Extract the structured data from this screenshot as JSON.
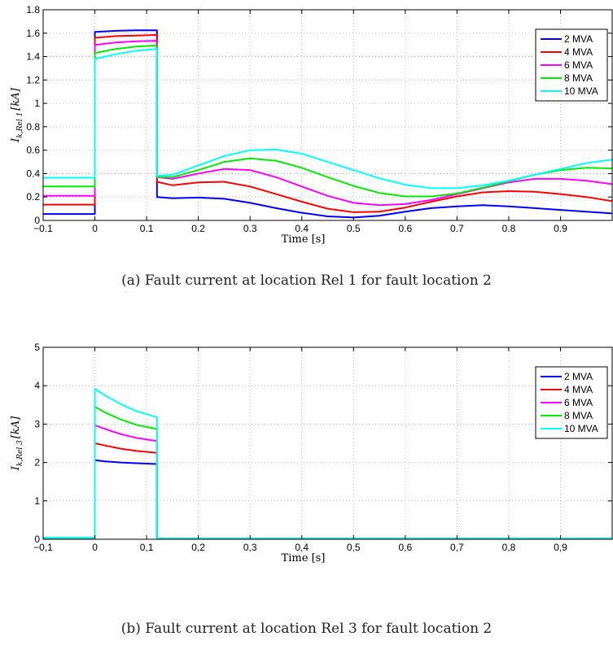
{
  "captions": {
    "a": "(a)  Fault current at location Rel 1 for fault location 2",
    "b": "(b)  Fault current at location Rel 3 for fault location 2"
  },
  "chart_data": [
    {
      "type": "line",
      "title": "",
      "xlabel": "Time [s]",
      "ylabel": "I_{k,Rel 1} [kA]",
      "xlim": [
        -0.1,
        1.0
      ],
      "ylim": [
        0,
        1.8
      ],
      "grid": true,
      "legend_position": "top-right",
      "xticks": [
        -0.1,
        0,
        0.1,
        0.2,
        0.3,
        0.4,
        0.5,
        0.6,
        0.7,
        0.8,
        0.9
      ],
      "xtick_labels": [
        "−0.1",
        "0",
        "0.1",
        "0.2",
        "0.3",
        "0.4",
        "0.5",
        "0.6",
        "0.7",
        "0.8",
        "0.9"
      ],
      "yticks": [
        0,
        0.2,
        0.4,
        0.6,
        0.8,
        1,
        1.2,
        1.4,
        1.6,
        1.8
      ],
      "ytick_labels": [
        "0",
        "0.2",
        "0.4",
        "0.6",
        "0.8",
        "1",
        "1.2",
        "1.4",
        "1.6",
        "1.8"
      ],
      "series": [
        {
          "name": "2 MVA",
          "color": "#0000ff",
          "x": [
            -0.1,
            0,
            0,
            0.04,
            0.08,
            0.12,
            0.12,
            0.15,
            0.2,
            0.25,
            0.3,
            0.35,
            0.4,
            0.45,
            0.5,
            0.55,
            0.6,
            0.65,
            0.7,
            0.75,
            0.8,
            0.85,
            0.9,
            0.95,
            1.0
          ],
          "y": [
            0.055,
            0.055,
            1.61,
            1.62,
            1.625,
            1.625,
            0.2,
            0.19,
            0.195,
            0.185,
            0.15,
            0.105,
            0.065,
            0.035,
            0.025,
            0.04,
            0.075,
            0.105,
            0.12,
            0.13,
            0.12,
            0.105,
            0.09,
            0.075,
            0.06
          ]
        },
        {
          "name": "4 MVA",
          "color": "#ff0000",
          "x": [
            -0.1,
            0,
            0,
            0.04,
            0.08,
            0.12,
            0.12,
            0.15,
            0.2,
            0.25,
            0.3,
            0.35,
            0.4,
            0.45,
            0.5,
            0.55,
            0.6,
            0.65,
            0.7,
            0.75,
            0.8,
            0.85,
            0.9,
            0.95,
            1.0
          ],
          "y": [
            0.135,
            0.135,
            1.56,
            1.575,
            1.58,
            1.585,
            0.33,
            0.3,
            0.325,
            0.33,
            0.29,
            0.225,
            0.16,
            0.1,
            0.07,
            0.075,
            0.11,
            0.16,
            0.205,
            0.24,
            0.25,
            0.245,
            0.225,
            0.2,
            0.165
          ]
        },
        {
          "name": "6 MVA",
          "color": "#ff00ff",
          "x": [
            -0.1,
            0,
            0,
            0.04,
            0.08,
            0.12,
            0.12,
            0.15,
            0.2,
            0.25,
            0.3,
            0.35,
            0.4,
            0.45,
            0.5,
            0.55,
            0.6,
            0.65,
            0.7,
            0.75,
            0.8,
            0.85,
            0.9,
            0.95,
            1.0
          ],
          "y": [
            0.21,
            0.21,
            1.5,
            1.52,
            1.53,
            1.535,
            0.37,
            0.355,
            0.4,
            0.44,
            0.43,
            0.37,
            0.29,
            0.21,
            0.15,
            0.13,
            0.14,
            0.175,
            0.225,
            0.275,
            0.325,
            0.355,
            0.355,
            0.34,
            0.31
          ]
        },
        {
          "name": "8 MVA",
          "color": "#00ee00",
          "x": [
            -0.1,
            0,
            0,
            0.04,
            0.08,
            0.12,
            0.12,
            0.15,
            0.2,
            0.25,
            0.3,
            0.35,
            0.4,
            0.45,
            0.5,
            0.55,
            0.6,
            0.65,
            0.7,
            0.75,
            0.8,
            0.85,
            0.9,
            0.95,
            1.0
          ],
          "y": [
            0.29,
            0.29,
            1.43,
            1.465,
            1.485,
            1.495,
            0.37,
            0.37,
            0.43,
            0.5,
            0.53,
            0.51,
            0.45,
            0.37,
            0.295,
            0.235,
            0.205,
            0.205,
            0.23,
            0.28,
            0.335,
            0.39,
            0.43,
            0.45,
            0.445
          ]
        },
        {
          "name": "10 MVA",
          "color": "#00ffff",
          "x": [
            -0.1,
            0,
            0,
            0.04,
            0.08,
            0.12,
            0.12,
            0.15,
            0.2,
            0.25,
            0.3,
            0.35,
            0.4,
            0.45,
            0.5,
            0.55,
            0.6,
            0.65,
            0.7,
            0.75,
            0.8,
            0.85,
            0.9,
            0.95,
            1.0
          ],
          "y": [
            0.365,
            0.365,
            1.38,
            1.42,
            1.45,
            1.465,
            0.38,
            0.39,
            0.47,
            0.55,
            0.6,
            0.605,
            0.57,
            0.5,
            0.43,
            0.36,
            0.305,
            0.275,
            0.275,
            0.3,
            0.34,
            0.39,
            0.44,
            0.49,
            0.52
          ]
        }
      ]
    },
    {
      "type": "line",
      "title": "",
      "xlabel": "Time [s]",
      "ylabel": "I_{k,Rel 3} [kA]",
      "xlim": [
        -0.1,
        1.0
      ],
      "ylim": [
        0,
        5
      ],
      "grid": true,
      "legend_position": "top-right",
      "xticks": [
        -0.1,
        0,
        0.1,
        0.2,
        0.3,
        0.4,
        0.5,
        0.6,
        0.7,
        0.8,
        0.9
      ],
      "xtick_labels": [
        "−0,1",
        "0",
        "0,1",
        "0,2",
        "0,3",
        "0,4",
        "0,5",
        "0,6",
        "0,7",
        "0,8",
        "0,9"
      ],
      "yticks": [
        0,
        1,
        2,
        3,
        4,
        5
      ],
      "ytick_labels": [
        "0",
        "1",
        "2",
        "3",
        "4",
        "5"
      ],
      "series": [
        {
          "name": "2 MVA",
          "color": "#0000ff",
          "x": [
            -0.1,
            0,
            0,
            0.02,
            0.05,
            0.08,
            0.12,
            0.12,
            1.0
          ],
          "y": [
            0.04,
            0.04,
            2.06,
            2.03,
            2.0,
            1.98,
            1.96,
            0.02,
            0.02
          ]
        },
        {
          "name": "4 MVA",
          "color": "#ff0000",
          "x": [
            -0.1,
            0,
            0,
            0.02,
            0.05,
            0.08,
            0.12,
            0.12,
            1.0
          ],
          "y": [
            0.04,
            0.04,
            2.5,
            2.44,
            2.36,
            2.3,
            2.25,
            0.02,
            0.02
          ]
        },
        {
          "name": "6 MVA",
          "color": "#ff00ff",
          "x": [
            -0.1,
            0,
            0,
            0.02,
            0.05,
            0.08,
            0.12,
            0.12,
            1.0
          ],
          "y": [
            0.04,
            0.04,
            2.97,
            2.87,
            2.74,
            2.64,
            2.56,
            0.02,
            0.02
          ]
        },
        {
          "name": "8 MVA",
          "color": "#00ee00",
          "x": [
            -0.1,
            0,
            0,
            0.02,
            0.05,
            0.08,
            0.12,
            0.12,
            1.0
          ],
          "y": [
            0.04,
            0.04,
            3.45,
            3.3,
            3.12,
            2.98,
            2.87,
            0.02,
            0.02
          ]
        },
        {
          "name": "10 MVA",
          "color": "#00ffff",
          "x": [
            -0.1,
            0,
            0,
            0.02,
            0.05,
            0.08,
            0.12,
            0.12,
            1.0
          ],
          "y": [
            0.04,
            0.04,
            3.92,
            3.74,
            3.52,
            3.34,
            3.18,
            0.02,
            0.02
          ]
        }
      ]
    }
  ]
}
